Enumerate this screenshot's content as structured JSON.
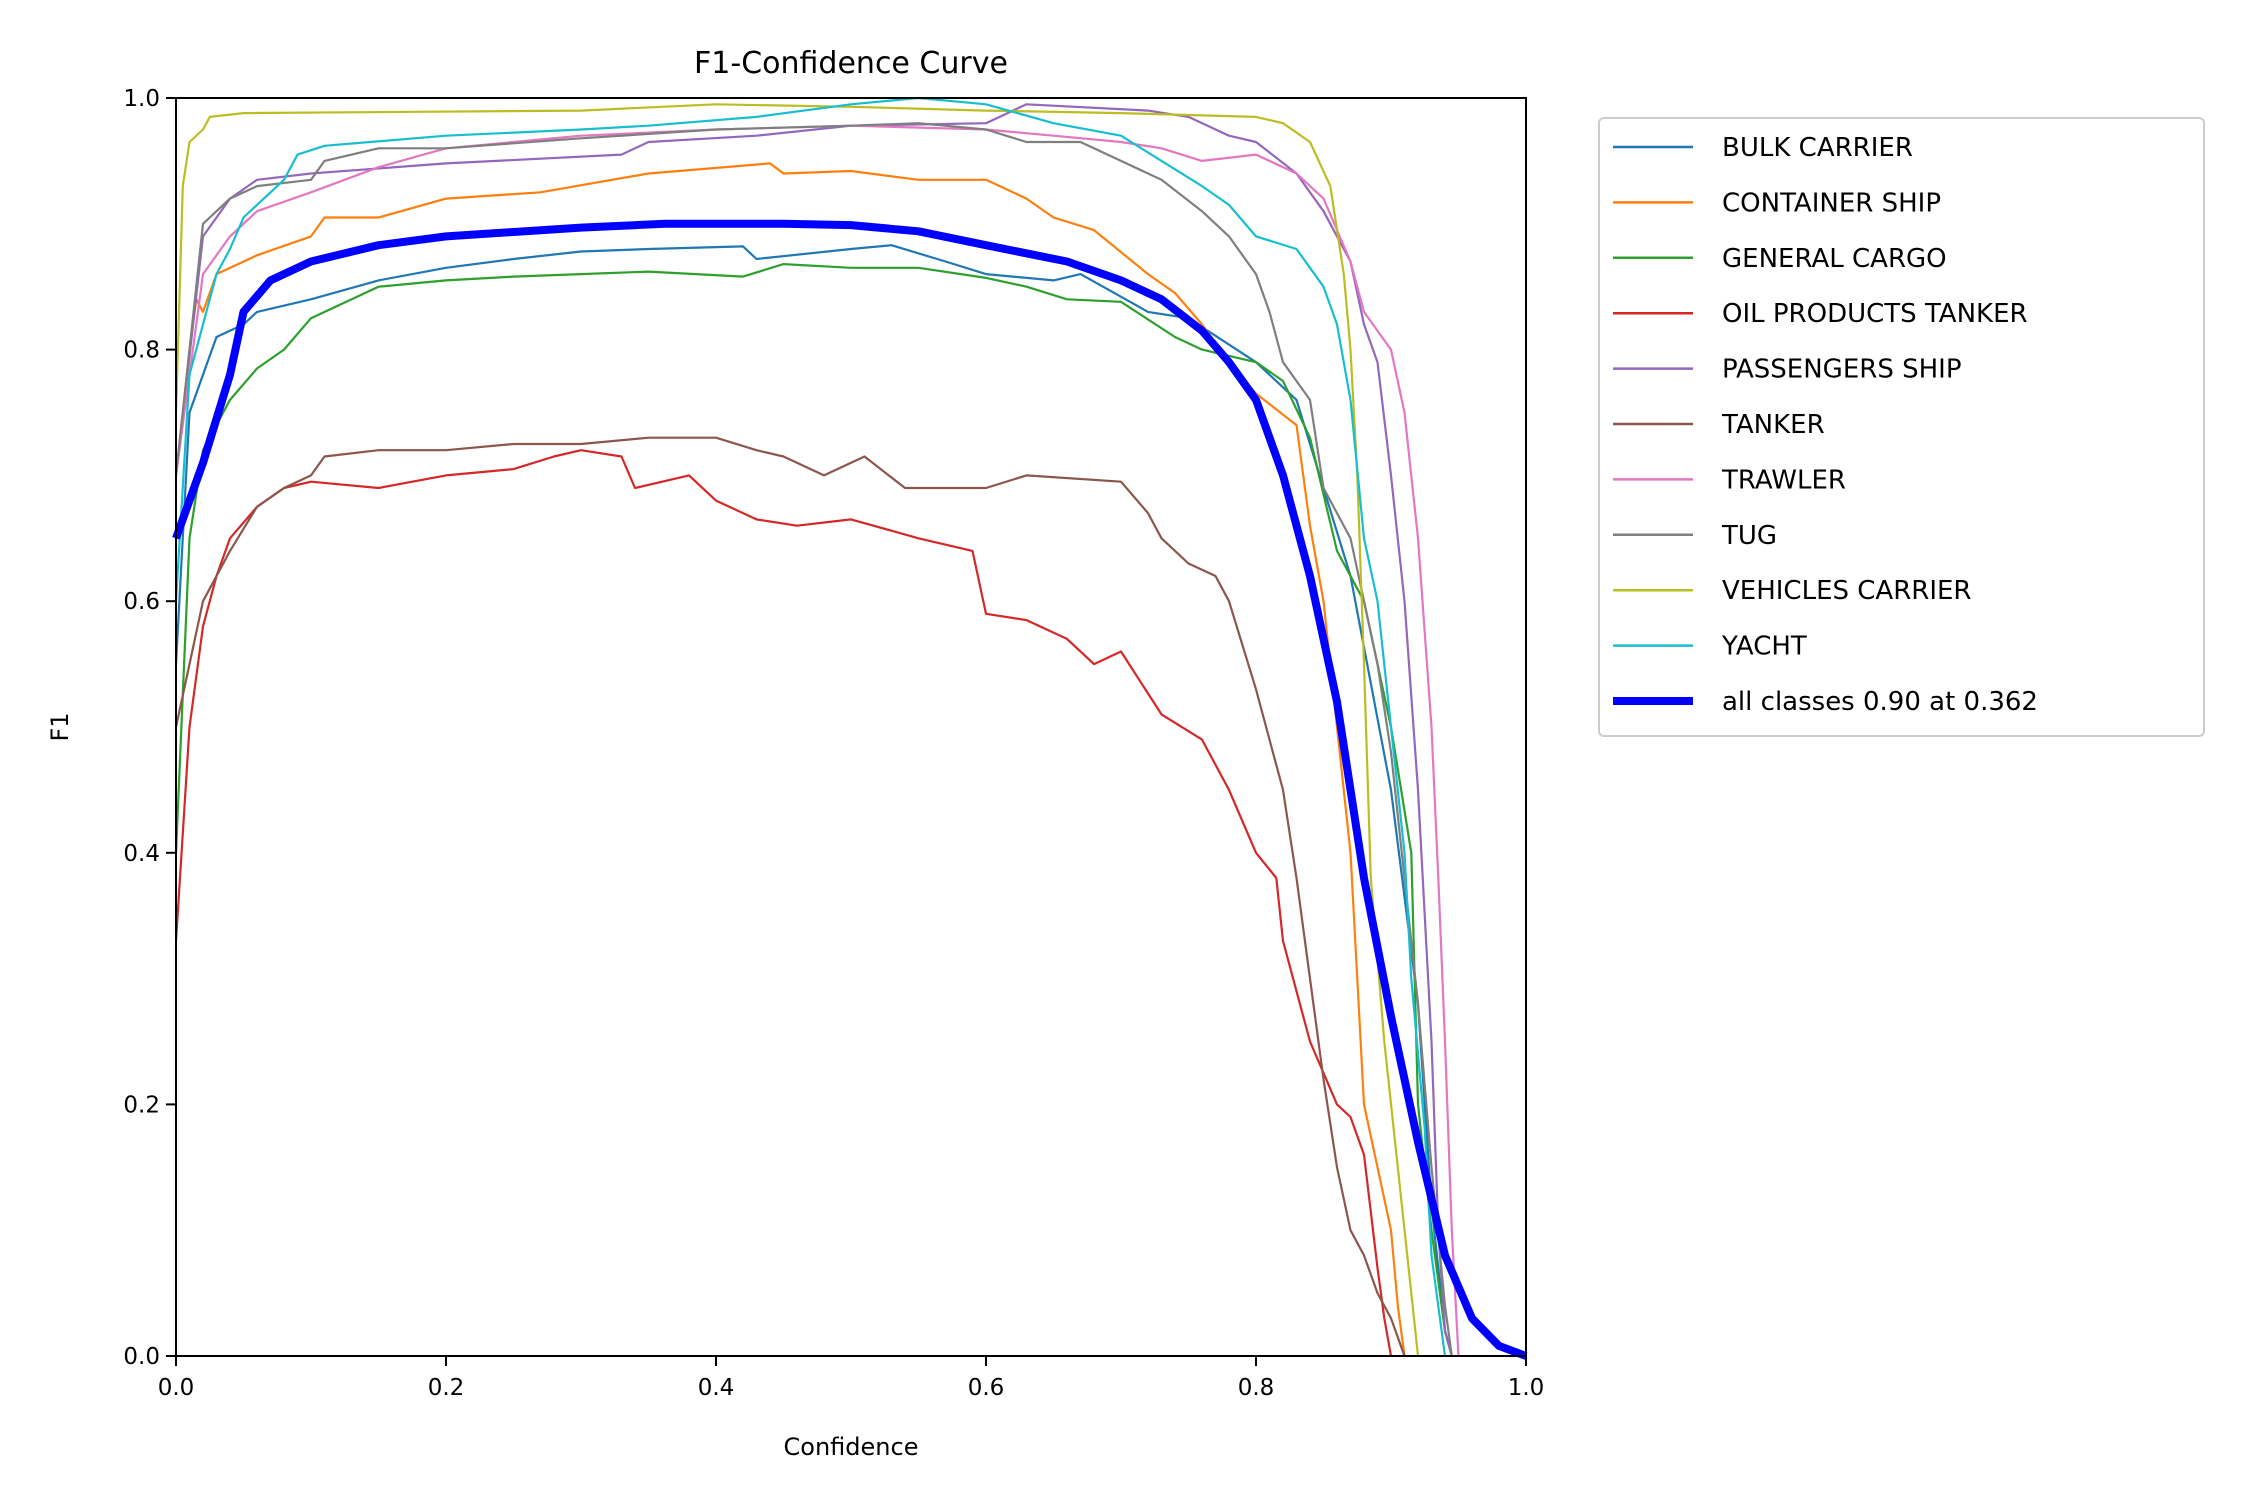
{
  "chart_data": {
    "type": "line",
    "title": "F1-Confidence Curve",
    "xlabel": "Confidence",
    "ylabel": "F1",
    "xlim": [
      0,
      1
    ],
    "ylim": [
      0,
      1
    ],
    "xticks": [
      "0.0",
      "0.2",
      "0.4",
      "0.6",
      "0.8",
      "1.0"
    ],
    "yticks": [
      "0.0",
      "0.2",
      "0.4",
      "0.6",
      "0.8",
      "1.0"
    ],
    "grid": false,
    "legend_position": "outside-top-right",
    "series": [
      {
        "name": "BULK CARRIER",
        "color": "#1f77b4",
        "x": [
          0,
          0.01,
          0.03,
          0.05,
          0.06,
          0.1,
          0.15,
          0.2,
          0.25,
          0.3,
          0.35,
          0.42,
          0.43,
          0.5,
          0.53,
          0.57,
          0.6,
          0.65,
          0.67,
          0.72,
          0.75,
          0.8,
          0.83,
          0.85,
          0.87,
          0.9,
          0.92,
          0.93,
          0.94,
          0.945
        ],
        "y": [
          0.55,
          0.75,
          0.81,
          0.82,
          0.83,
          0.84,
          0.855,
          0.865,
          0.872,
          0.878,
          0.88,
          0.882,
          0.872,
          0.88,
          0.883,
          0.87,
          0.86,
          0.855,
          0.86,
          0.83,
          0.825,
          0.79,
          0.76,
          0.69,
          0.62,
          0.45,
          0.28,
          0.12,
          0.02,
          0
        ]
      },
      {
        "name": "CONTAINER SHIP",
        "color": "#ff7f0e",
        "x": [
          0,
          0.01,
          0.015,
          0.02,
          0.03,
          0.06,
          0.1,
          0.11,
          0.15,
          0.2,
          0.27,
          0.35,
          0.44,
          0.45,
          0.5,
          0.55,
          0.6,
          0.63,
          0.65,
          0.68,
          0.72,
          0.74,
          0.76,
          0.78,
          0.8,
          0.83,
          0.84,
          0.85,
          0.86,
          0.87,
          0.875,
          0.88,
          0.89,
          0.9,
          0.905,
          0.91
        ],
        "y": [
          0.7,
          0.8,
          0.84,
          0.83,
          0.86,
          0.875,
          0.89,
          0.905,
          0.905,
          0.92,
          0.925,
          0.94,
          0.948,
          0.94,
          0.942,
          0.935,
          0.935,
          0.92,
          0.905,
          0.895,
          0.86,
          0.845,
          0.82,
          0.79,
          0.765,
          0.74,
          0.66,
          0.6,
          0.5,
          0.4,
          0.3,
          0.2,
          0.15,
          0.1,
          0.04,
          0
        ]
      },
      {
        "name": "GENERAL CARGO",
        "color": "#2ca02c",
        "x": [
          0,
          0.01,
          0.02,
          0.04,
          0.06,
          0.08,
          0.1,
          0.12,
          0.15,
          0.2,
          0.25,
          0.3,
          0.35,
          0.42,
          0.45,
          0.5,
          0.55,
          0.6,
          0.63,
          0.66,
          0.7,
          0.74,
          0.76,
          0.8,
          0.82,
          0.84,
          0.86,
          0.88,
          0.9,
          0.915,
          0.92,
          0.93,
          0.94,
          0.945
        ],
        "y": [
          0.4,
          0.65,
          0.72,
          0.76,
          0.785,
          0.8,
          0.825,
          0.835,
          0.85,
          0.855,
          0.858,
          0.86,
          0.862,
          0.858,
          0.868,
          0.865,
          0.865,
          0.857,
          0.85,
          0.84,
          0.838,
          0.81,
          0.8,
          0.79,
          0.775,
          0.73,
          0.64,
          0.6,
          0.5,
          0.4,
          0.2,
          0.1,
          0.02,
          0
        ]
      },
      {
        "name": "OIL PRODUCTS TANKER",
        "color": "#d62728",
        "x": [
          0,
          0.01,
          0.02,
          0.03,
          0.04,
          0.06,
          0.08,
          0.1,
          0.15,
          0.2,
          0.25,
          0.28,
          0.3,
          0.33,
          0.34,
          0.38,
          0.4,
          0.43,
          0.46,
          0.5,
          0.55,
          0.59,
          0.6,
          0.63,
          0.66,
          0.68,
          0.7,
          0.73,
          0.76,
          0.78,
          0.8,
          0.815,
          0.82,
          0.84,
          0.86,
          0.87,
          0.88,
          0.89,
          0.895,
          0.9
        ],
        "y": [
          0.33,
          0.5,
          0.58,
          0.62,
          0.65,
          0.675,
          0.69,
          0.695,
          0.69,
          0.7,
          0.705,
          0.715,
          0.72,
          0.715,
          0.69,
          0.7,
          0.68,
          0.665,
          0.66,
          0.665,
          0.65,
          0.64,
          0.59,
          0.585,
          0.57,
          0.55,
          0.56,
          0.51,
          0.49,
          0.45,
          0.4,
          0.38,
          0.33,
          0.25,
          0.2,
          0.19,
          0.16,
          0.07,
          0.03,
          0
        ]
      },
      {
        "name": "PASSENGERS SHIP",
        "color": "#9467bd",
        "x": [
          0,
          0.02,
          0.04,
          0.06,
          0.1,
          0.2,
          0.33,
          0.35,
          0.43,
          0.5,
          0.6,
          0.63,
          0.72,
          0.75,
          0.78,
          0.8,
          0.83,
          0.85,
          0.87,
          0.88,
          0.89,
          0.9,
          0.91,
          0.92,
          0.93,
          0.935,
          0.94,
          0.945
        ],
        "y": [
          0.7,
          0.89,
          0.92,
          0.935,
          0.94,
          0.948,
          0.955,
          0.965,
          0.97,
          0.978,
          0.98,
          0.995,
          0.99,
          0.985,
          0.97,
          0.965,
          0.94,
          0.91,
          0.87,
          0.82,
          0.79,
          0.7,
          0.6,
          0.45,
          0.25,
          0.1,
          0.02,
          0
        ]
      },
      {
        "name": "TANKER",
        "color": "#8c564b",
        "x": [
          0,
          0.01,
          0.02,
          0.04,
          0.06,
          0.08,
          0.1,
          0.11,
          0.15,
          0.2,
          0.25,
          0.3,
          0.35,
          0.4,
          0.43,
          0.45,
          0.48,
          0.51,
          0.54,
          0.6,
          0.63,
          0.7,
          0.72,
          0.73,
          0.75,
          0.77,
          0.78,
          0.8,
          0.81,
          0.82,
          0.83,
          0.84,
          0.85,
          0.86,
          0.87,
          0.88,
          0.89,
          0.9,
          0.91
        ],
        "y": [
          0.5,
          0.55,
          0.6,
          0.64,
          0.675,
          0.69,
          0.7,
          0.715,
          0.72,
          0.72,
          0.725,
          0.725,
          0.73,
          0.73,
          0.72,
          0.715,
          0.7,
          0.715,
          0.69,
          0.69,
          0.7,
          0.695,
          0.67,
          0.65,
          0.63,
          0.62,
          0.6,
          0.53,
          0.49,
          0.45,
          0.38,
          0.3,
          0.22,
          0.15,
          0.1,
          0.08,
          0.05,
          0.03,
          0
        ]
      },
      {
        "name": "TRAWLER",
        "color": "#e377c2",
        "x": [
          0,
          0.02,
          0.04,
          0.06,
          0.1,
          0.15,
          0.2,
          0.3,
          0.4,
          0.5,
          0.6,
          0.65,
          0.7,
          0.73,
          0.76,
          0.8,
          0.83,
          0.85,
          0.87,
          0.88,
          0.9,
          0.91,
          0.92,
          0.93,
          0.935,
          0.94,
          0.945,
          0.95
        ],
        "y": [
          0.7,
          0.86,
          0.89,
          0.91,
          0.925,
          0.945,
          0.96,
          0.97,
          0.975,
          0.978,
          0.975,
          0.97,
          0.965,
          0.96,
          0.95,
          0.955,
          0.94,
          0.92,
          0.87,
          0.83,
          0.8,
          0.75,
          0.65,
          0.5,
          0.38,
          0.25,
          0.1,
          0
        ]
      },
      {
        "name": "TUG",
        "color": "#7f7f7f",
        "x": [
          0,
          0.02,
          0.04,
          0.06,
          0.1,
          0.11,
          0.15,
          0.2,
          0.3,
          0.4,
          0.5,
          0.55,
          0.6,
          0.63,
          0.67,
          0.7,
          0.73,
          0.76,
          0.78,
          0.8,
          0.81,
          0.82,
          0.84,
          0.85,
          0.87,
          0.89,
          0.9,
          0.91,
          0.92,
          0.93,
          0.94,
          0.945
        ],
        "y": [
          0.7,
          0.9,
          0.92,
          0.93,
          0.935,
          0.95,
          0.96,
          0.96,
          0.968,
          0.975,
          0.978,
          0.98,
          0.975,
          0.965,
          0.965,
          0.95,
          0.935,
          0.91,
          0.89,
          0.86,
          0.83,
          0.79,
          0.76,
          0.69,
          0.65,
          0.55,
          0.48,
          0.38,
          0.28,
          0.15,
          0.04,
          0
        ]
      },
      {
        "name": "VEHICLES CARRIER",
        "color": "#bcbd22",
        "x": [
          0,
          0.005,
          0.01,
          0.02,
          0.025,
          0.05,
          0.3,
          0.4,
          0.5,
          0.6,
          0.7,
          0.8,
          0.82,
          0.84,
          0.855,
          0.865,
          0.87,
          0.875,
          0.88,
          0.885,
          0.895,
          0.905,
          0.915,
          0.92
        ],
        "y": [
          0.75,
          0.93,
          0.965,
          0.975,
          0.985,
          0.988,
          0.99,
          0.995,
          0.993,
          0.99,
          0.988,
          0.985,
          0.98,
          0.965,
          0.93,
          0.86,
          0.8,
          0.7,
          0.55,
          0.38,
          0.25,
          0.15,
          0.05,
          0
        ]
      },
      {
        "name": "YACHT",
        "color": "#17becf",
        "x": [
          0,
          0.01,
          0.02,
          0.03,
          0.04,
          0.05,
          0.06,
          0.08,
          0.09,
          0.11,
          0.2,
          0.3,
          0.35,
          0.43,
          0.5,
          0.55,
          0.6,
          0.65,
          0.7,
          0.73,
          0.76,
          0.78,
          0.8,
          0.83,
          0.85,
          0.86,
          0.87,
          0.88,
          0.89,
          0.9,
          0.91,
          0.915,
          0.925,
          0.93,
          0.94
        ],
        "y": [
          0.6,
          0.78,
          0.82,
          0.86,
          0.88,
          0.905,
          0.915,
          0.935,
          0.955,
          0.962,
          0.97,
          0.975,
          0.978,
          0.985,
          0.995,
          1.0,
          0.995,
          0.98,
          0.97,
          0.95,
          0.93,
          0.915,
          0.89,
          0.88,
          0.85,
          0.82,
          0.76,
          0.65,
          0.6,
          0.5,
          0.4,
          0.3,
          0.18,
          0.08,
          0
        ]
      },
      {
        "name": "all classes 0.90 at 0.362",
        "color": "#0000ff",
        "bold": true,
        "x": [
          0,
          0.02,
          0.04,
          0.05,
          0.07,
          0.1,
          0.15,
          0.2,
          0.3,
          0.362,
          0.45,
          0.5,
          0.55,
          0.6,
          0.66,
          0.7,
          0.73,
          0.76,
          0.78,
          0.8,
          0.82,
          0.84,
          0.86,
          0.88,
          0.9,
          0.92,
          0.94,
          0.96,
          0.98,
          1.0
        ],
        "y": [
          0.65,
          0.71,
          0.78,
          0.83,
          0.855,
          0.87,
          0.883,
          0.89,
          0.897,
          0.9,
          0.9,
          0.899,
          0.894,
          0.883,
          0.87,
          0.855,
          0.84,
          0.815,
          0.79,
          0.76,
          0.7,
          0.62,
          0.52,
          0.38,
          0.27,
          0.17,
          0.08,
          0.03,
          0.008,
          0
        ]
      }
    ]
  }
}
